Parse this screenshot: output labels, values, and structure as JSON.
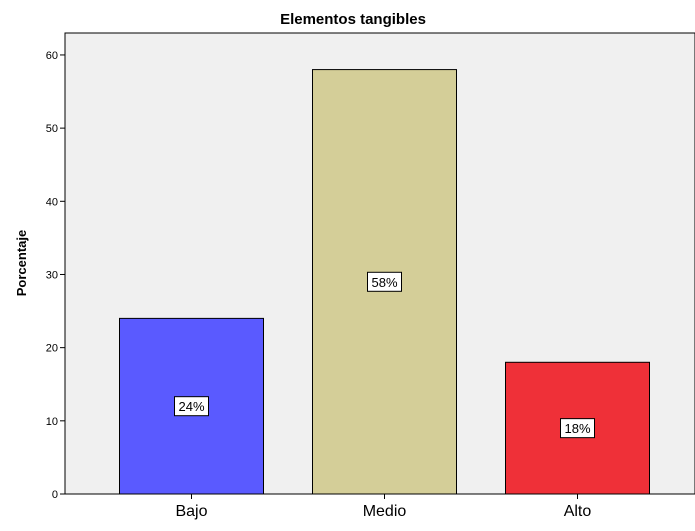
{
  "chart_data": {
    "type": "bar",
    "title": "Elementos tangibles",
    "xlabel": "",
    "ylabel": "Porcentaje",
    "categories": [
      "Bajo",
      "Medio",
      "Alto"
    ],
    "values": [
      24,
      58,
      18
    ],
    "data_labels": [
      "24%",
      "58%",
      "18%"
    ],
    "bar_colors": [
      "#5a5aff",
      "#d4ce98",
      "#ef3038"
    ],
    "plot_background": "#f0f0f0",
    "ylim": [
      0,
      63
    ],
    "yticks": [
      0,
      10,
      20,
      30,
      40,
      50,
      60
    ],
    "grid": false,
    "legend": false
  }
}
